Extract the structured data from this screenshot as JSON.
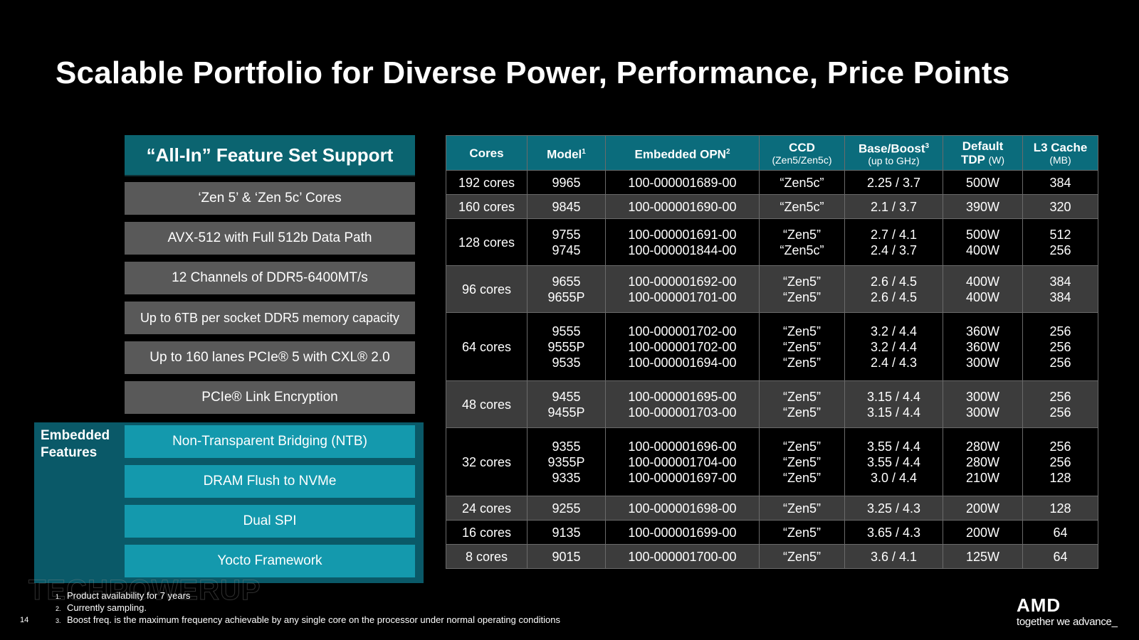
{
  "slide": {
    "title": "Scalable Portfolio for Diverse Power, Performance, Price Points",
    "page_number": "14"
  },
  "features": {
    "header": "“All-In” Feature Set Support",
    "items": [
      "‘Zen 5’ & ‘Zen 5c’ Cores",
      "AVX-512 with Full 512b Data Path",
      "12 Channels of DDR5-6400MT/s",
      "Up to 6TB per socket DDR5 memory capacity",
      "Up to 160 lanes PCIe® 5 with CXL® 2.0",
      "PCIe® Link Encryption"
    ],
    "embedded_label_line1": "Embedded",
    "embedded_label_line2": "Features",
    "embedded_items": [
      "Non-Transparent Bridging (NTB)",
      "DRAM Flush to NVMe",
      "Dual SPI",
      "Yocto Framework"
    ]
  },
  "table": {
    "headers": {
      "cores": "Cores",
      "model": "Model",
      "model_sup": "1",
      "opn": "Embedded OPN",
      "opn_sup": "2",
      "ccd": "CCD",
      "ccd_sub": "(Zen5/Zen5c)",
      "freq": "Base/Boost",
      "freq_sup": "3",
      "freq_sub": "(up to GHz)",
      "tdp": "Default",
      "tdp_line2": "TDP",
      "tdp_unit": "(W)",
      "l3": "L3 Cache",
      "l3_sub": "(MB)"
    },
    "rows": [
      {
        "cores": "192 cores",
        "models": [
          "9965"
        ],
        "opns": [
          "100-000001689-00"
        ],
        "ccds": [
          "“Zen5c”"
        ],
        "freqs": [
          "2.25 / 3.7"
        ],
        "tdps": [
          "500W"
        ],
        "l3s": [
          "384"
        ]
      },
      {
        "cores": "160 cores",
        "models": [
          "9845"
        ],
        "opns": [
          "100-000001690-00"
        ],
        "ccds": [
          "“Zen5c”"
        ],
        "freqs": [
          "2.1 / 3.7"
        ],
        "tdps": [
          "390W"
        ],
        "l3s": [
          "320"
        ]
      },
      {
        "cores": "128 cores",
        "models": [
          "9755",
          "9745"
        ],
        "opns": [
          "100-000001691-00",
          "100-000001844-00"
        ],
        "ccds": [
          "“Zen5”",
          "“Zen5c”"
        ],
        "freqs": [
          "2.7 / 4.1",
          "2.4 / 3.7"
        ],
        "tdps": [
          "500W",
          "400W"
        ],
        "l3s": [
          "512",
          "256"
        ]
      },
      {
        "cores": "96 cores",
        "models": [
          "9655",
          "9655P"
        ],
        "opns": [
          "100-000001692-00",
          "100-000001701-00"
        ],
        "ccds": [
          "“Zen5”",
          "“Zen5”"
        ],
        "freqs": [
          "2.6 / 4.5",
          "2.6 / 4.5"
        ],
        "tdps": [
          "400W",
          "400W"
        ],
        "l3s": [
          "384",
          "384"
        ]
      },
      {
        "cores": "64 cores",
        "models": [
          "9555",
          "9555P",
          "9535"
        ],
        "opns": [
          "100-000001702-00",
          "100-000001702-00",
          "100-000001694-00"
        ],
        "ccds": [
          "“Zen5”",
          "“Zen5”",
          "“Zen5”"
        ],
        "freqs": [
          "3.2 / 4.4",
          "3.2 / 4.4",
          "2.4 / 4.3"
        ],
        "tdps": [
          "360W",
          "360W",
          "300W"
        ],
        "l3s": [
          "256",
          "256",
          "256"
        ]
      },
      {
        "cores": "48 cores",
        "models": [
          "9455",
          "9455P"
        ],
        "opns": [
          "100-000001695-00",
          "100-000001703-00"
        ],
        "ccds": [
          "“Zen5”",
          "“Zen5”"
        ],
        "freqs": [
          "3.15 / 4.4",
          "3.15 / 4.4"
        ],
        "tdps": [
          "300W",
          "300W"
        ],
        "l3s": [
          "256",
          "256"
        ]
      },
      {
        "cores": "32 cores",
        "models": [
          "9355",
          "9355P",
          "9335"
        ],
        "opns": [
          "100-000001696-00",
          "100-000001704-00",
          "100-000001697-00"
        ],
        "ccds": [
          "“Zen5”",
          "“Zen5”",
          "“Zen5”"
        ],
        "freqs": [
          "3.55 / 4.4",
          "3.55 / 4.4",
          "3.0 / 4.4"
        ],
        "tdps": [
          "280W",
          "280W",
          "210W"
        ],
        "l3s": [
          "256",
          "256",
          "128"
        ]
      },
      {
        "cores": "24 cores",
        "models": [
          "9255"
        ],
        "opns": [
          "100-000001698-00"
        ],
        "ccds": [
          "“Zen5”"
        ],
        "freqs": [
          "3.25 / 4.3"
        ],
        "tdps": [
          "200W"
        ],
        "l3s": [
          "128"
        ]
      },
      {
        "cores": "16 cores",
        "models": [
          "9135"
        ],
        "opns": [
          "100-000001699-00"
        ],
        "ccds": [
          "“Zen5”"
        ],
        "freqs": [
          "3.65 / 4.3"
        ],
        "tdps": [
          "200W"
        ],
        "l3s": [
          "64"
        ]
      },
      {
        "cores": "8 cores",
        "models": [
          "9015"
        ],
        "opns": [
          "100-000001700-00"
        ],
        "ccds": [
          "“Zen5”"
        ],
        "freqs": [
          "3.6 / 4.1"
        ],
        "tdps": [
          "125W"
        ],
        "l3s": [
          "64"
        ]
      }
    ]
  },
  "footnotes": [
    {
      "num": "1.",
      "text": "Product availability for 7 years"
    },
    {
      "num": "2.",
      "text": "Currently sampling."
    },
    {
      "num": "3.",
      "text": "Boost freq. is the maximum frequency achievable by any single core on the processor under normal operating conditions"
    }
  ],
  "brand": {
    "logo": "AMD",
    "tagline": "together we advance_",
    "watermark": "TECHPOWERUP"
  }
}
